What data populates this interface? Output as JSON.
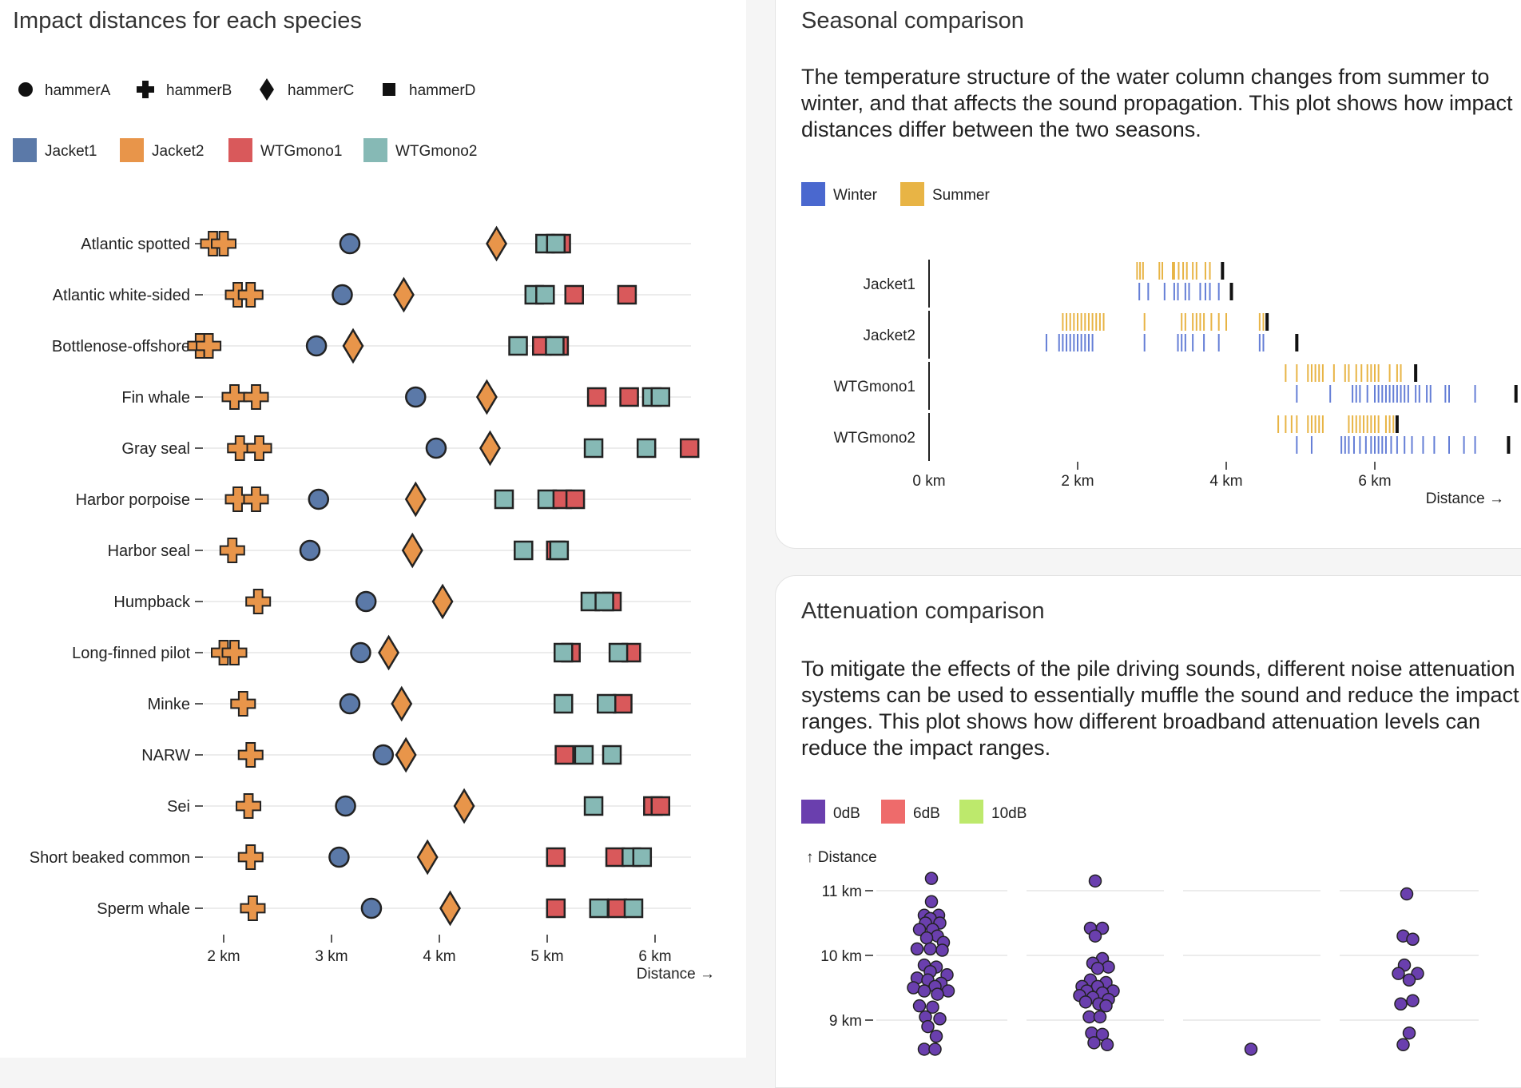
{
  "left": {
    "title": "Impact distances for each species"
  },
  "seasonal": {
    "title": "Seasonal comparison",
    "description": "The temperature structure of the water column changes from summer to winter, and that affects the sound propagation. This plot shows how impact distances differ between the two seasons."
  },
  "attenuation": {
    "title": "Attenuation comparison",
    "description": "To mitigate the effects of the pile driving sounds, different noise attenuation systems can be used to essentially muffle the sound and reduce the impact ranges. This plot shows how different broadband attenuation levels can reduce the impact ranges."
  },
  "colors": {
    "Jacket1": "#5b79a8",
    "Jacket2": "#e8954a",
    "WTGmono1": "#d9595b",
    "WTGmono2": "#86b9b5",
    "Winter": "#4a68cf",
    "Summer": "#e8b445",
    "0dB": "#6a3fae",
    "6dB": "#ee6b6b",
    "10dB": "#bde96c"
  },
  "chart_data": [
    {
      "type": "scatter",
      "title": "Impact distances for each species",
      "xlabel": "Distance →",
      "xlim": [
        1.75,
        6.35
      ],
      "xticks": [
        {
          "value": 2,
          "label": "2 km"
        },
        {
          "value": 3,
          "label": "3 km"
        },
        {
          "value": 4,
          "label": "4 km"
        },
        {
          "value": 5,
          "label": "5 km"
        },
        {
          "value": 6,
          "label": "6 km"
        }
      ],
      "shape_legend": [
        {
          "name": "hammerA",
          "shape": "circle"
        },
        {
          "name": "hammerB",
          "shape": "cross"
        },
        {
          "name": "hammerC",
          "shape": "diamond"
        },
        {
          "name": "hammerD",
          "shape": "square"
        }
      ],
      "color_legend": [
        "Jacket1",
        "Jacket2",
        "WTGmono1",
        "WTGmono2"
      ],
      "species": [
        {
          "name": "Atlantic spotted",
          "hammerB": [
            1.9,
            2.0
          ],
          "hammerA": 3.17,
          "hammerC": 4.53,
          "hammerD": [
            {
              "x": 5.13,
              "c": "WTGmono1"
            },
            {
              "x": 4.98,
              "c": "WTGmono2"
            },
            {
              "x": 5.08,
              "c": "WTGmono2"
            }
          ]
        },
        {
          "name": "Atlantic white-sided",
          "hammerB": [
            2.13,
            2.25
          ],
          "hammerA": 3.1,
          "hammerC": 3.67,
          "hammerD": [
            {
              "x": 4.88,
              "c": "WTGmono2"
            },
            {
              "x": 4.98,
              "c": "WTGmono2"
            },
            {
              "x": 5.25,
              "c": "WTGmono1"
            },
            {
              "x": 5.74,
              "c": "WTGmono1"
            }
          ]
        },
        {
          "name": "Bottlenose-offshore",
          "hammerB": [
            1.78,
            1.86
          ],
          "hammerA": 2.86,
          "hammerC": 3.2,
          "hammerD": [
            {
              "x": 4.73,
              "c": "WTGmono2"
            },
            {
              "x": 4.95,
              "c": "WTGmono1"
            },
            {
              "x": 5.11,
              "c": "WTGmono1"
            },
            {
              "x": 5.07,
              "c": "WTGmono2"
            }
          ]
        },
        {
          "name": "Fin whale",
          "hammerB": [
            2.1,
            2.3
          ],
          "hammerA": 3.78,
          "hammerC": 4.44,
          "hammerD": [
            {
              "x": 5.46,
              "c": "WTGmono1"
            },
            {
              "x": 5.76,
              "c": "WTGmono1"
            },
            {
              "x": 5.97,
              "c": "WTGmono2"
            },
            {
              "x": 6.05,
              "c": "WTGmono2"
            }
          ]
        },
        {
          "name": "Gray seal",
          "hammerB": [
            2.15,
            2.33
          ],
          "hammerA": 3.97,
          "hammerC": 4.47,
          "hammerD": [
            {
              "x": 5.43,
              "c": "WTGmono2"
            },
            {
              "x": 5.92,
              "c": "WTGmono2"
            },
            {
              "x": 6.32,
              "c": "WTGmono1"
            }
          ]
        },
        {
          "name": "Harbor porpoise",
          "hammerB": [
            2.13,
            2.3
          ],
          "hammerA": 2.88,
          "hammerC": 3.78,
          "hammerD": [
            {
              "x": 4.6,
              "c": "WTGmono2"
            },
            {
              "x": 5.0,
              "c": "WTGmono2"
            },
            {
              "x": 5.14,
              "c": "WTGmono1"
            },
            {
              "x": 5.26,
              "c": "WTGmono1"
            }
          ]
        },
        {
          "name": "Harbor seal",
          "hammerB": [
            2.08
          ],
          "hammerA": 2.8,
          "hammerC": 3.75,
          "hammerD": [
            {
              "x": 4.78,
              "c": "WTGmono2"
            },
            {
              "x": 5.08,
              "c": "WTGmono1"
            },
            {
              "x": 5.11,
              "c": "WTGmono2"
            }
          ]
        },
        {
          "name": "Humpback",
          "hammerB": [
            2.32
          ],
          "hammerA": 3.32,
          "hammerC": 4.03,
          "hammerD": [
            {
              "x": 5.6,
              "c": "WTGmono1"
            },
            {
              "x": 5.4,
              "c": "WTGmono2"
            },
            {
              "x": 5.53,
              "c": "WTGmono2"
            }
          ]
        },
        {
          "name": "Long-finned pilot",
          "hammerB": [
            2.0,
            2.1
          ],
          "hammerA": 3.27,
          "hammerC": 3.53,
          "hammerD": [
            {
              "x": 5.22,
              "c": "WTGmono1"
            },
            {
              "x": 5.15,
              "c": "WTGmono2"
            },
            {
              "x": 5.78,
              "c": "WTGmono1"
            },
            {
              "x": 5.66,
              "c": "WTGmono2"
            }
          ]
        },
        {
          "name": "Minke",
          "hammerB": [
            2.18
          ],
          "hammerA": 3.17,
          "hammerC": 3.65,
          "hammerD": [
            {
              "x": 5.15,
              "c": "WTGmono2"
            },
            {
              "x": 5.7,
              "c": "WTGmono1"
            },
            {
              "x": 5.55,
              "c": "WTGmono2"
            }
          ]
        },
        {
          "name": "NARW",
          "hammerB": [
            2.25
          ],
          "hammerA": 3.48,
          "hammerC": 3.69,
          "hammerD": [
            {
              "x": 5.16,
              "c": "WTGmono1"
            },
            {
              "x": 5.34,
              "c": "WTGmono2"
            },
            {
              "x": 5.6,
              "c": "WTGmono2"
            }
          ]
        },
        {
          "name": "Sei",
          "hammerB": [
            2.23
          ],
          "hammerA": 3.13,
          "hammerC": 4.23,
          "hammerD": [
            {
              "x": 5.43,
              "c": "WTGmono2"
            },
            {
              "x": 5.98,
              "c": "WTGmono1"
            },
            {
              "x": 6.05,
              "c": "WTGmono1"
            }
          ]
        },
        {
          "name": "Short beaked common",
          "hammerB": [
            2.25
          ],
          "hammerA": 3.07,
          "hammerC": 3.89,
          "hammerD": [
            {
              "x": 5.08,
              "c": "WTGmono1"
            },
            {
              "x": 5.63,
              "c": "WTGmono1"
            },
            {
              "x": 5.78,
              "c": "WTGmono2"
            },
            {
              "x": 5.88,
              "c": "WTGmono2"
            }
          ]
        },
        {
          "name": "Sperm whale",
          "hammerB": [
            2.27
          ],
          "hammerA": 3.37,
          "hammerC": 4.1,
          "hammerD": [
            {
              "x": 5.08,
              "c": "WTGmono1"
            },
            {
              "x": 5.48,
              "c": "WTGmono2"
            },
            {
              "x": 5.65,
              "c": "WTGmono1"
            },
            {
              "x": 5.8,
              "c": "WTGmono2"
            }
          ]
        }
      ]
    },
    {
      "type": "scatter",
      "title": "Seasonal comparison",
      "xlabel": "Distance →",
      "xlim": [
        0,
        7.5
      ],
      "xticks": [
        {
          "value": 0,
          "label": "0 km"
        },
        {
          "value": 2,
          "label": "2 km"
        },
        {
          "value": 4,
          "label": "4 km"
        },
        {
          "value": 6,
          "label": "6 km"
        }
      ],
      "legend": [
        "Winter",
        "Summer"
      ],
      "categories": [
        "Jacket1",
        "Jacket2",
        "WTGmono1",
        "WTGmono2"
      ],
      "rows": [
        {
          "name": "Jacket1",
          "summer": [
            2.8,
            2.84,
            2.88,
            3.1,
            3.14,
            3.28,
            3.3,
            3.36,
            3.42,
            3.47,
            3.55,
            3.6,
            3.72,
            3.78
          ],
          "summer_max": 3.95,
          "winter": [
            2.83,
            2.95,
            3.17,
            3.3,
            3.35,
            3.45,
            3.5,
            3.65,
            3.72,
            3.78,
            3.9,
            4.07
          ],
          "winter_max": 4.07
        },
        {
          "name": "Jacket2",
          "summer": [
            1.8,
            1.85,
            1.9,
            1.95,
            2.0,
            2.05,
            2.1,
            2.15,
            2.2,
            2.25,
            2.3,
            2.35,
            2.9,
            3.4,
            3.45,
            3.55,
            3.6,
            3.65,
            3.7,
            3.8,
            3.9,
            4.0,
            4.45,
            4.5,
            4.55
          ],
          "summer_max": 4.55,
          "winter": [
            1.58,
            1.75,
            1.8,
            1.85,
            1.9,
            1.95,
            2.0,
            2.05,
            2.1,
            2.15,
            2.2,
            2.9,
            3.35,
            3.4,
            3.45,
            3.55,
            3.7,
            3.9,
            4.45,
            4.5
          ],
          "winter_max": 4.95
        },
        {
          "name": "WTGmono1",
          "summer": [
            4.8,
            4.95,
            5.1,
            5.15,
            5.2,
            5.25,
            5.3,
            5.45,
            5.6,
            5.65,
            5.75,
            5.82,
            5.9,
            5.95,
            6.0,
            6.05,
            6.2,
            6.3,
            6.35
          ],
          "summer_max": 6.55,
          "winter": [
            4.95,
            5.4,
            5.7,
            5.75,
            5.8,
            5.9,
            6.0,
            6.05,
            6.1,
            6.15,
            6.2,
            6.25,
            6.3,
            6.35,
            6.4,
            6.45,
            6.55,
            6.6,
            6.7,
            6.75,
            6.95,
            7.0,
            7.35
          ],
          "winter_max": 7.9
        },
        {
          "name": "WTGmono2",
          "summer": [
            4.7,
            4.8,
            4.88,
            4.95,
            5.1,
            5.15,
            5.2,
            5.25,
            5.3,
            5.65,
            5.7,
            5.75,
            5.8,
            5.85,
            5.9,
            5.95,
            6.0,
            6.05,
            6.15,
            6.2,
            6.25
          ],
          "summer_max": 6.3,
          "winter": [
            4.95,
            5.15,
            5.55,
            5.6,
            5.65,
            5.72,
            5.8,
            5.88,
            5.95,
            6.0,
            6.05,
            6.1,
            6.15,
            6.22,
            6.3,
            6.4,
            6.5,
            6.65,
            6.8,
            7.0,
            7.2,
            7.35
          ],
          "winter_max": 7.8
        }
      ]
    },
    {
      "type": "scatter",
      "title": "Attenuation comparison",
      "ylabel": "↑ Distance",
      "ylim": [
        8.55,
        11.2
      ],
      "yticks": [
        {
          "value": 9,
          "label": "9 km"
        },
        {
          "value": 10,
          "label": "10 km"
        },
        {
          "value": 11,
          "label": "11 km"
        }
      ],
      "legend": [
        "0dB",
        "6dB",
        "10dB"
      ],
      "groups": [
        {
          "points": [
            {
              "v": 11.19,
              "o": 0
            },
            {
              "v": 10.83,
              "o": 0
            },
            {
              "v": 10.62,
              "o": -0.6
            },
            {
              "v": 10.62,
              "o": 0.6
            },
            {
              "v": 10.57,
              "o": -0.1
            },
            {
              "v": 10.5,
              "o": -0.5
            },
            {
              "v": 10.5,
              "o": 0.7
            },
            {
              "v": 10.4,
              "o": -1.0
            },
            {
              "v": 10.4,
              "o": 0.1
            },
            {
              "v": 10.3,
              "o": 0.5
            },
            {
              "v": 10.27,
              "o": -0.4
            },
            {
              "v": 10.2,
              "o": 1.0
            },
            {
              "v": 10.1,
              "o": -1.2
            },
            {
              "v": 10.1,
              "o": -0.1
            },
            {
              "v": 10.08,
              "o": 0.9
            },
            {
              "v": 9.85,
              "o": -0.6
            },
            {
              "v": 9.82,
              "o": 0.4
            },
            {
              "v": 9.75,
              "o": -0.1
            },
            {
              "v": 9.7,
              "o": 1.3
            },
            {
              "v": 9.65,
              "o": -1.2
            },
            {
              "v": 9.62,
              "o": -0.3
            },
            {
              "v": 9.57,
              "o": 0.8
            },
            {
              "v": 9.52,
              "o": 0.3
            },
            {
              "v": 9.5,
              "o": -1.5
            },
            {
              "v": 9.45,
              "o": -0.6
            },
            {
              "v": 9.45,
              "o": 1.4
            },
            {
              "v": 9.4,
              "o": 0.5
            },
            {
              "v": 9.22,
              "o": -1.0
            },
            {
              "v": 9.2,
              "o": 0.1
            },
            {
              "v": 9.05,
              "o": -0.5
            },
            {
              "v": 9.02,
              "o": 0.7
            },
            {
              "v": 8.9,
              "o": -0.3
            },
            {
              "v": 8.75,
              "o": 0.4
            },
            {
              "v": 8.55,
              "o": -0.6
            },
            {
              "v": 8.55,
              "o": 0.3
            }
          ]
        },
        {
          "points": [
            {
              "v": 11.15,
              "o": 0
            },
            {
              "v": 10.42,
              "o": -0.4
            },
            {
              "v": 10.42,
              "o": 0.6
            },
            {
              "v": 10.3,
              "o": 0
            },
            {
              "v": 9.95,
              "o": 0.6
            },
            {
              "v": 9.88,
              "o": -0.2
            },
            {
              "v": 9.82,
              "o": 1.1
            },
            {
              "v": 9.8,
              "o": 0.2
            },
            {
              "v": 9.62,
              "o": -0.4
            },
            {
              "v": 9.58,
              "o": 0.9
            },
            {
              "v": 9.52,
              "o": -1.1
            },
            {
              "v": 9.52,
              "o": 0.2
            },
            {
              "v": 9.45,
              "o": -0.7
            },
            {
              "v": 9.45,
              "o": 1.5
            },
            {
              "v": 9.42,
              "o": 0.6
            },
            {
              "v": 9.38,
              "o": -1.3
            },
            {
              "v": 9.35,
              "o": -0.2
            },
            {
              "v": 9.32,
              "o": 1.1
            },
            {
              "v": 9.28,
              "o": -0.8
            },
            {
              "v": 9.25,
              "o": 0.3
            },
            {
              "v": 9.22,
              "o": 0.9
            },
            {
              "v": 9.05,
              "o": -0.5
            },
            {
              "v": 9.05,
              "o": 0.4
            },
            {
              "v": 8.8,
              "o": -0.3
            },
            {
              "v": 8.78,
              "o": 0.6
            },
            {
              "v": 8.65,
              "o": -0.1
            },
            {
              "v": 8.62,
              "o": 1.0
            }
          ]
        },
        {
          "points": [
            {
              "v": 8.55,
              "o": 0
            }
          ]
        },
        {
          "points": [
            {
              "v": 10.95,
              "o": 0
            },
            {
              "v": 10.3,
              "o": -0.3
            },
            {
              "v": 10.25,
              "o": 0.5
            },
            {
              "v": 9.85,
              "o": -0.2
            },
            {
              "v": 9.72,
              "o": -0.7
            },
            {
              "v": 9.72,
              "o": 0.9
            },
            {
              "v": 9.62,
              "o": 0.2
            },
            {
              "v": 9.3,
              "o": 0.5
            },
            {
              "v": 9.25,
              "o": -0.5
            },
            {
              "v": 8.8,
              "o": 0.2
            },
            {
              "v": 8.62,
              "o": -0.3
            }
          ]
        }
      ]
    }
  ]
}
